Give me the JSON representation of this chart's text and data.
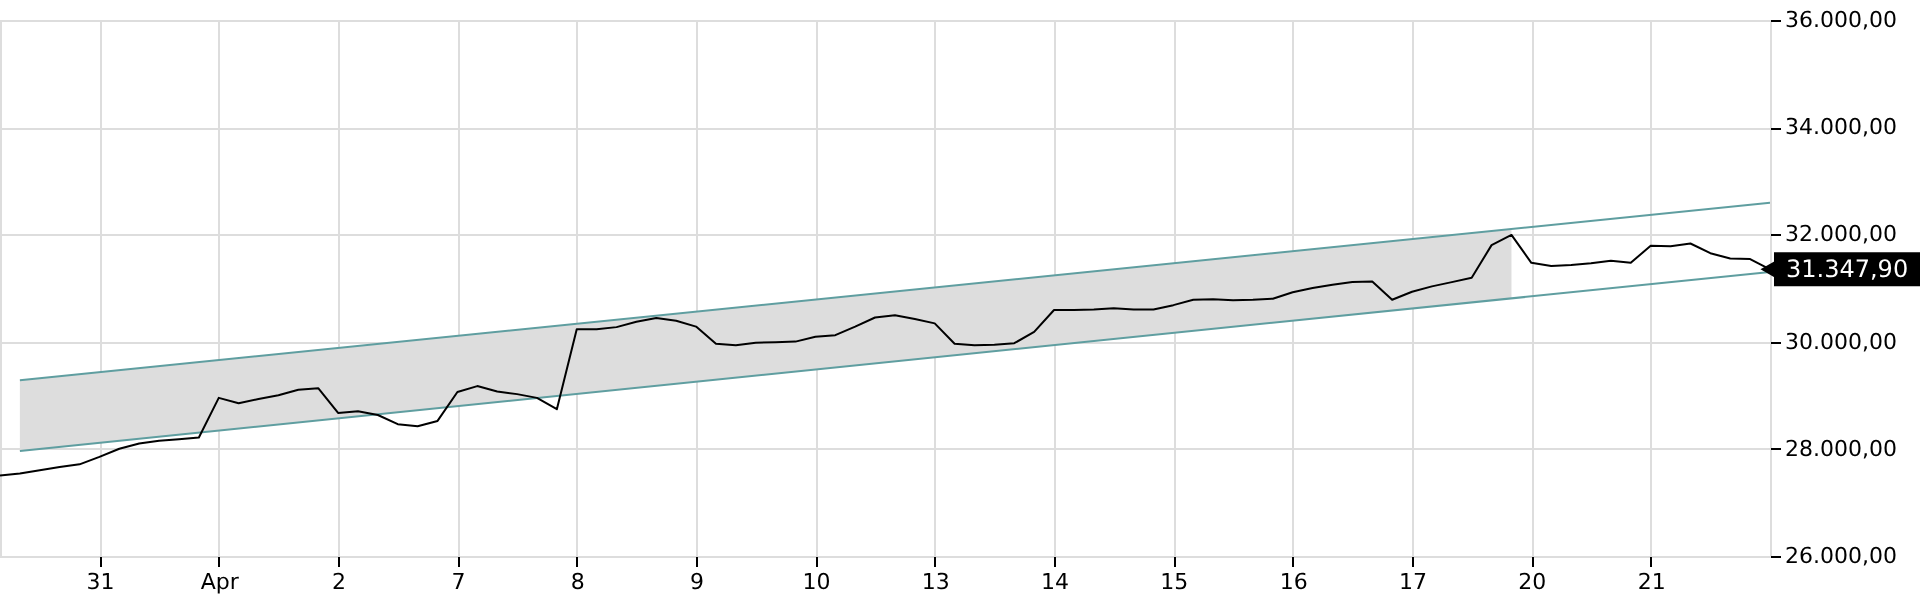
{
  "chart_data": {
    "type": "line",
    "ylim": [
      26000,
      36000
    ],
    "categories": [
      null,
      null,
      null,
      null,
      null,
      "31",
      null,
      null,
      null,
      null,
      null,
      "Apr",
      null,
      null,
      null,
      null,
      null,
      "2",
      null,
      null,
      null,
      null,
      null,
      "7",
      null,
      null,
      null,
      null,
      null,
      "8",
      null,
      null,
      null,
      null,
      null,
      "9",
      null,
      null,
      null,
      null,
      null,
      "10",
      null,
      null,
      null,
      null,
      null,
      "13",
      null,
      null,
      null,
      null,
      null,
      "14",
      null,
      null,
      null,
      null,
      null,
      "15",
      null,
      null,
      null,
      null,
      null,
      "16",
      null,
      null,
      null,
      null,
      null,
      "17",
      null,
      null,
      null,
      null,
      null,
      "20",
      null,
      null,
      null,
      null,
      null,
      "21",
      null,
      null,
      null,
      null,
      null,
      null
    ],
    "yticks": [
      {
        "value": 26000,
        "label": "26.000,00"
      },
      {
        "value": 28000,
        "label": "28.000,00"
      },
      {
        "value": 30000,
        "label": "30.000,00"
      },
      {
        "value": 32000,
        "label": "32.000,00"
      },
      {
        "value": 34000,
        "label": "34.000,00"
      },
      {
        "value": 36000,
        "label": "36.000,00"
      }
    ],
    "grid": true,
    "series": [
      {
        "type": "line",
        "color": "#5f9ea0",
        "values": [
          null,
          29280,
          null,
          null,
          null,
          null,
          null,
          null,
          null,
          null,
          null,
          null,
          null,
          null,
          null,
          null,
          null,
          null,
          null,
          null,
          null,
          null,
          null,
          null,
          null,
          null,
          null,
          null,
          null,
          null,
          null,
          null,
          null,
          null,
          null,
          null,
          null,
          null,
          null,
          null,
          null,
          null,
          null,
          null,
          null,
          null,
          null,
          null,
          null,
          null,
          null,
          null,
          null,
          null,
          null,
          null,
          null,
          null,
          null,
          null,
          null,
          null,
          null,
          null,
          null,
          null,
          null,
          null,
          null,
          null,
          null,
          null,
          null,
          null,
          null,
          null,
          null,
          null,
          null,
          null,
          null,
          null,
          null,
          null,
          null,
          null,
          null,
          null,
          null,
          32590
        ],
        "lower": [
          null,
          27960,
          null,
          null,
          null,
          null,
          null,
          null,
          null,
          null,
          null,
          null,
          null,
          null,
          null,
          null,
          null,
          null,
          null,
          null,
          null,
          null,
          null,
          null,
          null,
          null,
          null,
          null,
          null,
          null,
          null,
          null,
          null,
          null,
          null,
          null,
          null,
          null,
          null,
          null,
          null,
          null,
          null,
          null,
          null,
          null,
          null,
          null,
          null,
          null,
          null,
          null,
          null,
          null,
          null,
          null,
          null,
          null,
          null,
          null,
          null,
          null,
          null,
          null,
          null,
          null,
          null,
          null,
          null,
          null,
          null,
          null,
          null,
          null,
          null,
          null,
          30810,
          null,
          null,
          null,
          null,
          null,
          null,
          null,
          null,
          null,
          null,
          null,
          null,
          null
        ],
        "upper": [
          null,
          29280,
          null,
          null,
          null,
          null,
          null,
          null,
          null,
          null,
          null,
          null,
          null,
          null,
          null,
          null,
          null,
          null,
          null,
          null,
          null,
          null,
          null,
          null,
          null,
          null,
          null,
          null,
          null,
          null,
          null,
          null,
          null,
          null,
          null,
          null,
          null,
          null,
          null,
          null,
          null,
          null,
          null,
          null,
          null,
          null,
          null,
          null,
          null,
          null,
          null,
          null,
          null,
          null,
          null,
          null,
          null,
          null,
          null,
          null,
          null,
          null,
          null,
          null,
          null,
          null,
          null,
          null,
          null,
          null,
          null,
          null,
          null,
          null,
          null,
          null,
          32100,
          null,
          null,
          null,
          null,
          null,
          null,
          null,
          null,
          null,
          null,
          null,
          null,
          null
        ]
      },
      {
        "type": "line",
        "color": "#5f9ea0",
        "values": [
          null,
          27960,
          null,
          null,
          null,
          null,
          null,
          null,
          null,
          null,
          null,
          null,
          null,
          null,
          null,
          null,
          null,
          null,
          null,
          null,
          null,
          null,
          null,
          null,
          null,
          null,
          null,
          null,
          null,
          null,
          null,
          null,
          null,
          null,
          null,
          null,
          null,
          null,
          null,
          null,
          null,
          null,
          null,
          null,
          null,
          null,
          null,
          null,
          null,
          null,
          null,
          null,
          null,
          null,
          null,
          null,
          null,
          null,
          null,
          null,
          null,
          null,
          null,
          null,
          null,
          null,
          null,
          null,
          null,
          null,
          null,
          null,
          null,
          null,
          null,
          null,
          null,
          null,
          null,
          null,
          null,
          null,
          null,
          null,
          null,
          null,
          null,
          null,
          null,
          31300
        ]
      },
      {
        "type": "line",
        "color": "#000000",
        "values": [
          27500,
          27540,
          27600,
          27660,
          27710,
          27850,
          28000,
          28100,
          28150,
          28180,
          28210,
          28950,
          28850,
          28930,
          29000,
          29100,
          29130,
          28670,
          28700,
          28630,
          28460,
          28420,
          28520,
          29060,
          29170,
          29070,
          29020,
          28950,
          28740,
          30230,
          30230,
          30270,
          30370,
          30440,
          30390,
          30280,
          29960,
          29930,
          29980,
          29990,
          30000,
          30090,
          30120,
          30280,
          30450,
          30490,
          30420,
          30340,
          29960,
          29930,
          29940,
          29970,
          30180,
          30590,
          30590,
          30600,
          30620,
          30600,
          30600,
          30680,
          30780,
          30790,
          30770,
          30780,
          30800,
          30920,
          31000,
          31060,
          31110,
          31120,
          30780,
          30930,
          31030,
          31110,
          31190,
          31800,
          31990,
          31470,
          31410,
          31430,
          31460,
          31510,
          31470,
          31790,
          31780,
          31830,
          31650,
          31550,
          31540,
          31347.9
        ]
      }
    ],
    "annotations": [
      "31.347,90"
    ]
  }
}
